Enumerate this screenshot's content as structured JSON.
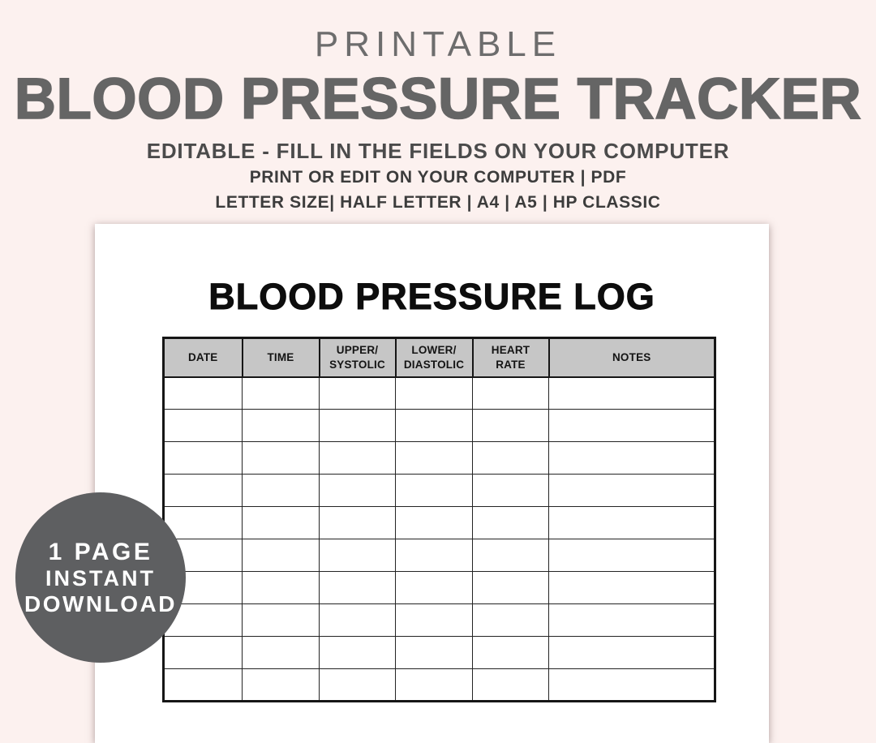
{
  "header": {
    "kicker": "PRINTABLE",
    "title": "BLOOD PRESSURE TRACKER",
    "subtitle": "EDITABLE - FILL IN THE FIELDS ON YOUR COMPUTER",
    "format_line": "PRINT OR EDIT ON YOUR COMPUTER | PDF",
    "sizes_line": "LETTER SIZE| HALF LETTER | A4 | A5 | HP CLASSIC"
  },
  "document": {
    "title": "BLOOD PRESSURE LOG",
    "table": {
      "columns": [
        "DATE",
        "TIME",
        "UPPER/\nSYSTOLIC",
        "LOWER/\nDIASTOLIC",
        "HEART\nRATE",
        "NOTES"
      ],
      "empty_row_count": 10
    }
  },
  "badge": {
    "line1": "1 PAGE",
    "line2": "INSTANT",
    "line3": "DOWNLOAD"
  },
  "colors": {
    "background": "#fcf1ef",
    "kicker_text": "#6d6d6d",
    "title_text": "#656565",
    "subtitle_text": "#4b4b4b",
    "meta_text": "#3c3c3c",
    "page_background": "#ffffff",
    "table_header_background": "#c6c6c6",
    "table_border": "#161616",
    "badge_background": "#5e5f61",
    "badge_text": "#ffffff"
  }
}
